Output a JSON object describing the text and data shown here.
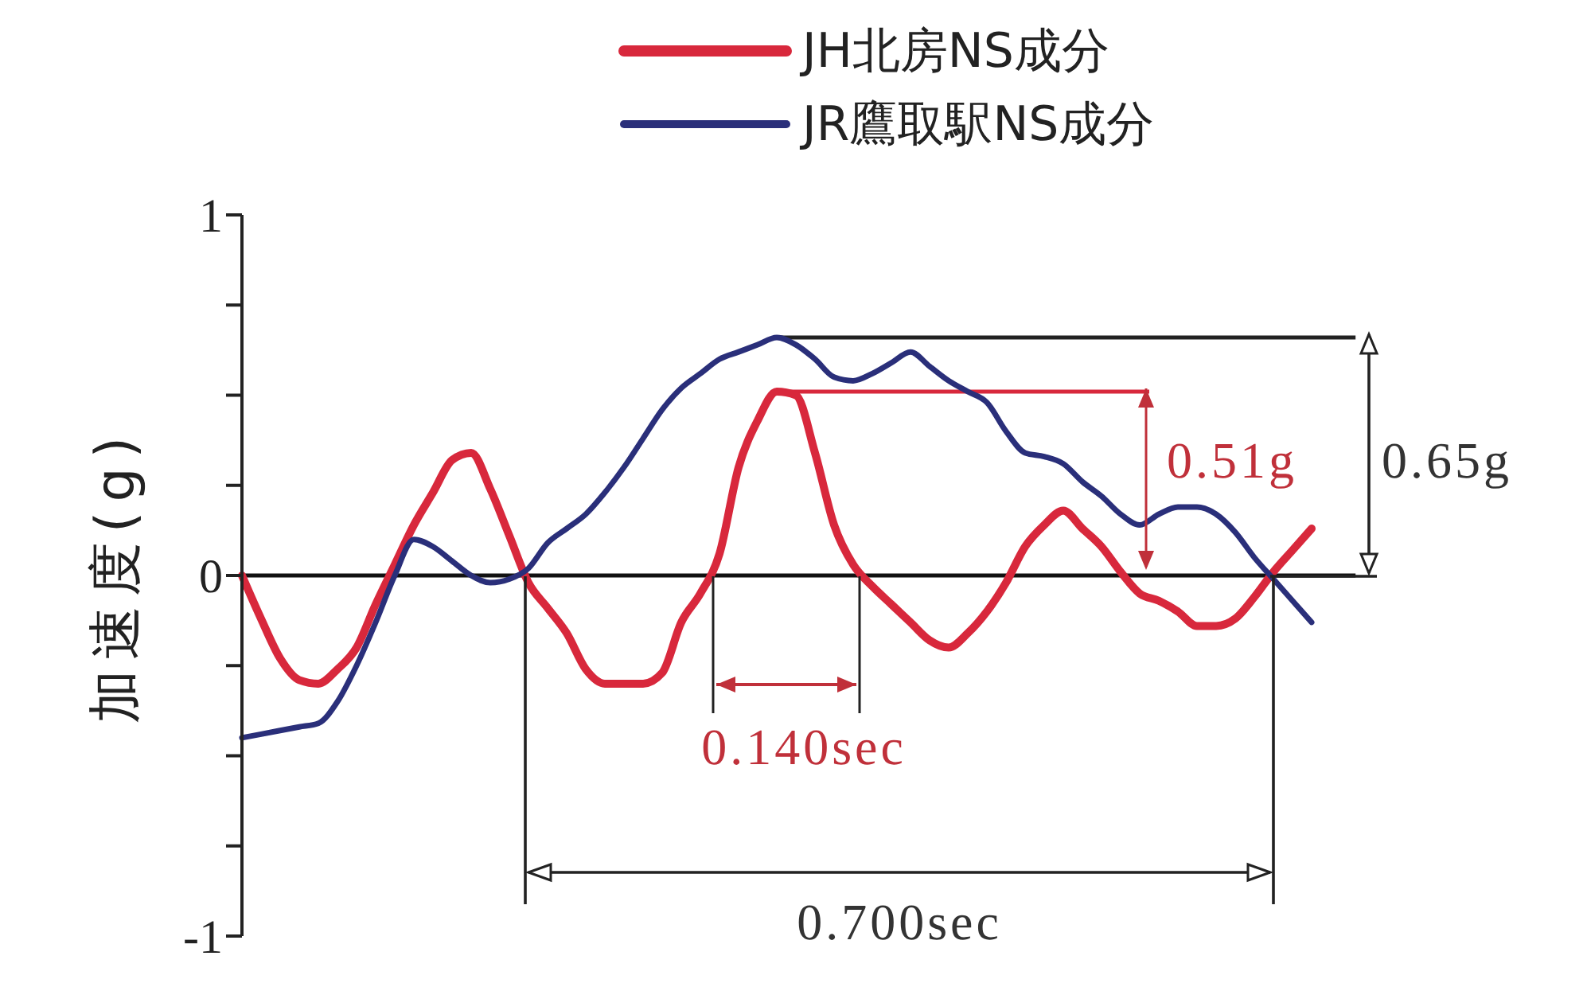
{
  "chart_data": {
    "type": "line",
    "ylabel": "加速度(g)",
    "categories": [
      null,
      null,
      null,
      null,
      null,
      null,
      null,
      null,
      null,
      null,
      null,
      null,
      null,
      null,
      null,
      null,
      null,
      null,
      null,
      null,
      null,
      null,
      null,
      null,
      null,
      null,
      null,
      null,
      null,
      null,
      null,
      null,
      null,
      null,
      null,
      null,
      null,
      null,
      null,
      null,
      null,
      null,
      null,
      null,
      null,
      null,
      null,
      null,
      null,
      null,
      null,
      null,
      null,
      null,
      null,
      null,
      null
    ],
    "series": [
      {
        "name": "JH北房NS成分",
        "color": "#d8283c",
        "values": [
          0,
          -0.12,
          -0.23,
          -0.29,
          -0.3,
          -0.26,
          -0.2,
          -0.08,
          0.03,
          0.14,
          0.23,
          0.32,
          0.34,
          0.24,
          0.11,
          -0.02,
          -0.09,
          -0.16,
          -0.26,
          -0.3,
          -0.3,
          -0.3,
          -0.27,
          -0.13,
          -0.05,
          0.06,
          0.3,
          0.43,
          0.51,
          0.5,
          0.34,
          0.14,
          0.03,
          -0.03,
          -0.08,
          -0.13,
          -0.18,
          -0.2,
          -0.16,
          -0.1,
          -0.02,
          0.08,
          0.14,
          0.18,
          0.13,
          0.08,
          0.01,
          -0.05,
          -0.07,
          -0.1,
          -0.14,
          -0.14,
          -0.12,
          -0.06,
          0.01,
          0.07,
          0.13
        ]
      },
      {
        "name": "JR鷹取駅NS成分",
        "color": "#2a2f7a",
        "values": [
          -0.45,
          -0.44,
          -0.43,
          -0.42,
          -0.41,
          -0.35,
          -0.25,
          -0.13,
          0,
          0.1,
          0.08,
          0.04,
          0,
          -0.02,
          -0.01,
          0.02,
          0.09,
          0.13,
          0.17,
          0.23,
          0.3,
          0.38,
          0.46,
          0.52,
          0.56,
          0.6,
          0.62,
          0.64,
          0.66,
          0.64,
          0.6,
          0.55,
          0.54,
          0.56,
          0.59,
          0.62,
          0.58,
          0.54,
          0.51,
          0.48,
          0.4,
          0.34,
          0.33,
          0.31,
          0.26,
          0.22,
          0.17,
          0.14,
          0.17,
          0.19,
          0.19,
          0.17,
          0.12,
          0.05,
          -0.01,
          -0.07,
          -0.13
        ]
      }
    ],
    "ylim": [
      -1,
      1
    ],
    "yticks": [
      -1,
      {
        "value": -0.75,
        "label": null
      },
      {
        "value": -0.5,
        "label": null
      },
      {
        "value": -0.25,
        "label": null
      },
      0,
      {
        "value": 0.25,
        "label": null
      },
      {
        "value": 0.5,
        "label": null
      },
      {
        "value": 0.75,
        "label": null
      },
      1
    ],
    "ref_lines": [
      {
        "axis": "y",
        "value": 0
      },
      {
        "axis": "y",
        "value": 0.66,
        "color": "#222222"
      },
      {
        "axis": "y",
        "value": 0.51,
        "color": "#d8283c"
      }
    ],
    "annotations": [
      "0.51g",
      "0.65g",
      "0.140sec",
      "0.700sec"
    ],
    "legend": "top",
    "marker": "none",
    "line_style": "solid"
  }
}
